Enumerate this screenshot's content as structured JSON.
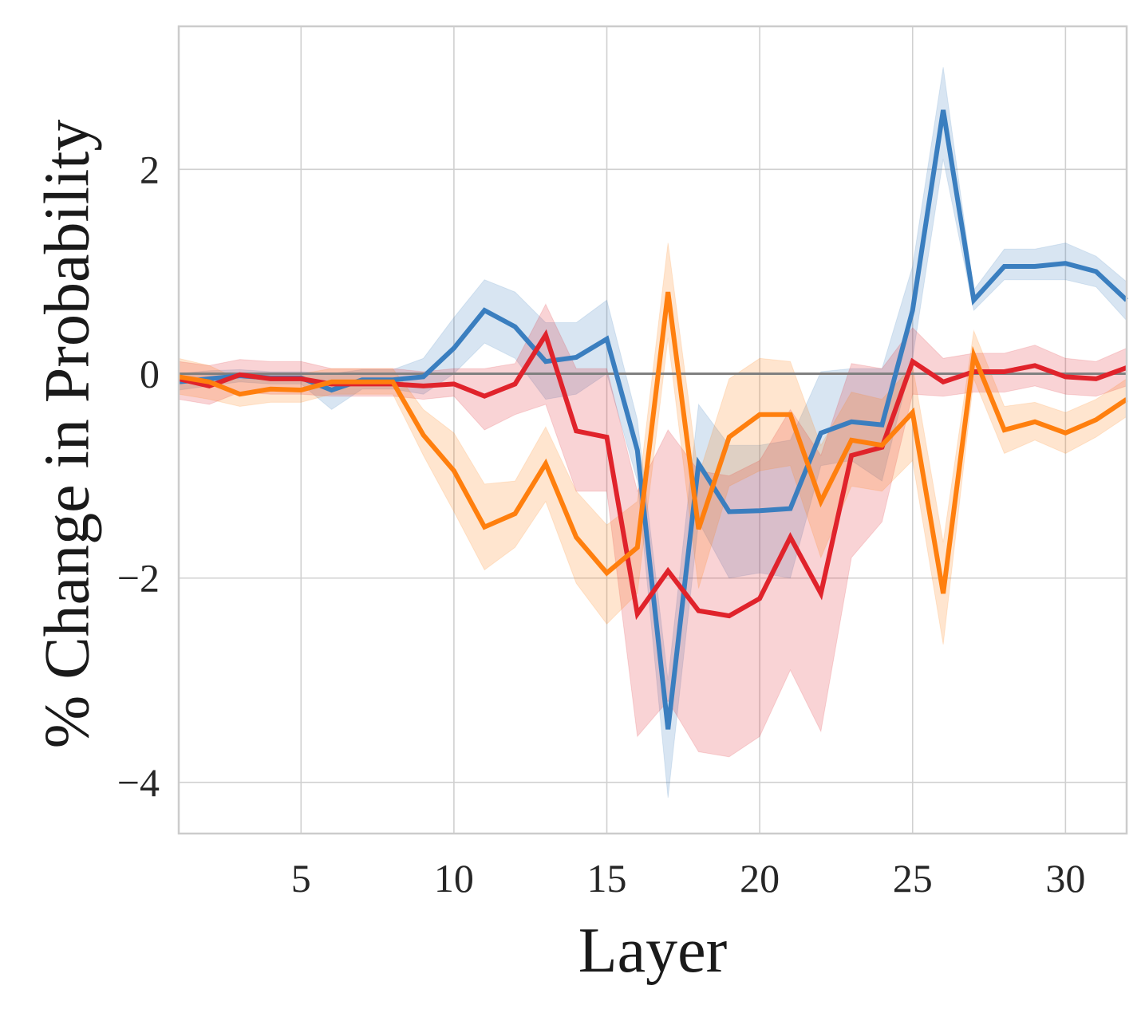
{
  "chart_data": {
    "type": "line",
    "title": "",
    "xlabel": "Layer",
    "ylabel": "% Change in Probability",
    "xlim": [
      1,
      32
    ],
    "ylim": [
      -4.5,
      3.4
    ],
    "xticks": [
      5,
      10,
      15,
      20,
      25,
      30
    ],
    "yticks": [
      -4,
      -2,
      0,
      2
    ],
    "xtick_labels": [
      "5",
      "10",
      "15",
      "20",
      "25",
      "30"
    ],
    "ytick_labels": [
      "−4",
      "−2",
      "0",
      "2"
    ],
    "grid": true,
    "legend": "none",
    "reference_line": {
      "y": 0,
      "color": "#808080"
    },
    "x": [
      1,
      2,
      3,
      4,
      5,
      6,
      7,
      8,
      9,
      10,
      11,
      12,
      13,
      14,
      15,
      16,
      17,
      18,
      19,
      20,
      21,
      22,
      23,
      24,
      25,
      26,
      27,
      28,
      29,
      30,
      31,
      32
    ],
    "series": [
      {
        "name": "blue",
        "color": "#3a7ebf",
        "values": [
          -0.08,
          -0.05,
          -0.02,
          -0.04,
          -0.04,
          -0.16,
          -0.06,
          -0.06,
          -0.03,
          0.25,
          0.62,
          0.46,
          0.12,
          0.16,
          0.34,
          -0.75,
          -3.48,
          -0.88,
          -1.35,
          -1.34,
          -1.32,
          -0.58,
          -0.47,
          -0.5,
          0.62,
          2.58,
          0.72,
          1.05,
          1.05,
          1.08,
          1.0,
          0.72
        ],
        "lower": [
          -0.16,
          -0.12,
          -0.08,
          -0.1,
          -0.1,
          -0.35,
          -0.15,
          -0.15,
          -0.2,
          0.0,
          0.3,
          0.15,
          -0.25,
          -0.2,
          0.0,
          -1.05,
          -4.15,
          -1.45,
          -2.0,
          -1.95,
          -2.0,
          -0.9,
          -0.85,
          -1.05,
          0.15,
          2.1,
          0.62,
          0.92,
          0.92,
          0.92,
          0.85,
          0.52
        ],
        "upper": [
          0.0,
          0.03,
          0.04,
          0.02,
          0.02,
          0.0,
          0.04,
          0.04,
          0.15,
          0.55,
          0.92,
          0.8,
          0.5,
          0.5,
          0.72,
          -0.45,
          -3.0,
          -0.3,
          -0.7,
          -0.7,
          -0.65,
          0.02,
          0.05,
          0.05,
          1.05,
          3.0,
          0.82,
          1.22,
          1.22,
          1.28,
          1.15,
          0.9
        ]
      },
      {
        "name": "red",
        "color": "#e0232b",
        "values": [
          -0.05,
          -0.12,
          -0.01,
          -0.05,
          -0.05,
          -0.1,
          -0.1,
          -0.1,
          -0.12,
          -0.1,
          -0.22,
          -0.1,
          0.38,
          -0.56,
          -0.62,
          -2.35,
          -1.93,
          -2.32,
          -2.37,
          -2.2,
          -1.6,
          -2.15,
          -0.8,
          -0.72,
          0.12,
          -0.08,
          0.02,
          0.02,
          0.08,
          -0.03,
          -0.05,
          0.06
        ],
        "lower": [
          -0.25,
          -0.3,
          -0.18,
          -0.2,
          -0.2,
          -0.22,
          -0.22,
          -0.22,
          -0.25,
          -0.22,
          -0.55,
          -0.4,
          -0.3,
          -1.15,
          -1.15,
          -3.55,
          -3.2,
          -3.7,
          -3.75,
          -3.55,
          -2.9,
          -3.5,
          -1.8,
          -1.45,
          -0.2,
          -0.22,
          -0.18,
          -0.18,
          -0.12,
          -0.2,
          -0.22,
          -0.12
        ],
        "upper": [
          0.12,
          0.08,
          0.14,
          0.12,
          0.12,
          0.05,
          0.05,
          0.05,
          0.02,
          0.05,
          0.05,
          0.1,
          0.68,
          0.05,
          0.05,
          -1.15,
          -0.55,
          -0.95,
          -1.0,
          -0.85,
          -0.35,
          -0.8,
          0.1,
          0.05,
          0.45,
          0.15,
          0.2,
          0.2,
          0.28,
          0.15,
          0.12,
          0.25
        ]
      },
      {
        "name": "orange",
        "color": "#ff7f0e",
        "values": [
          -0.03,
          -0.08,
          -0.2,
          -0.15,
          -0.16,
          -0.08,
          -0.08,
          -0.08,
          -0.6,
          -0.95,
          -1.5,
          -1.37,
          -0.88,
          -1.6,
          -1.95,
          -1.7,
          0.8,
          -1.52,
          -0.62,
          -0.4,
          -0.4,
          -1.25,
          -0.65,
          -0.7,
          -0.38,
          -2.15,
          0.18,
          -0.55,
          -0.47,
          -0.58,
          -0.45,
          -0.25
        ],
        "lower": [
          -0.2,
          -0.25,
          -0.32,
          -0.28,
          -0.28,
          -0.2,
          -0.2,
          -0.2,
          -0.8,
          -1.35,
          -1.92,
          -1.7,
          -1.25,
          -2.05,
          -2.45,
          -2.15,
          0.35,
          -2.1,
          -1.1,
          -0.95,
          -0.9,
          -1.8,
          -1.1,
          -1.15,
          -0.85,
          -2.65,
          -0.05,
          -0.78,
          -0.65,
          -0.78,
          -0.62,
          -0.42
        ],
        "upper": [
          0.15,
          0.08,
          -0.06,
          0.0,
          0.0,
          0.05,
          0.05,
          0.05,
          -0.35,
          -0.58,
          -1.08,
          -1.05,
          -0.52,
          -1.15,
          -1.48,
          -1.25,
          1.28,
          -1.0,
          -0.05,
          0.15,
          0.12,
          -0.7,
          -0.18,
          -0.25,
          0.08,
          -1.65,
          0.42,
          -0.32,
          -0.28,
          -0.38,
          -0.25,
          -0.05
        ]
      }
    ]
  }
}
